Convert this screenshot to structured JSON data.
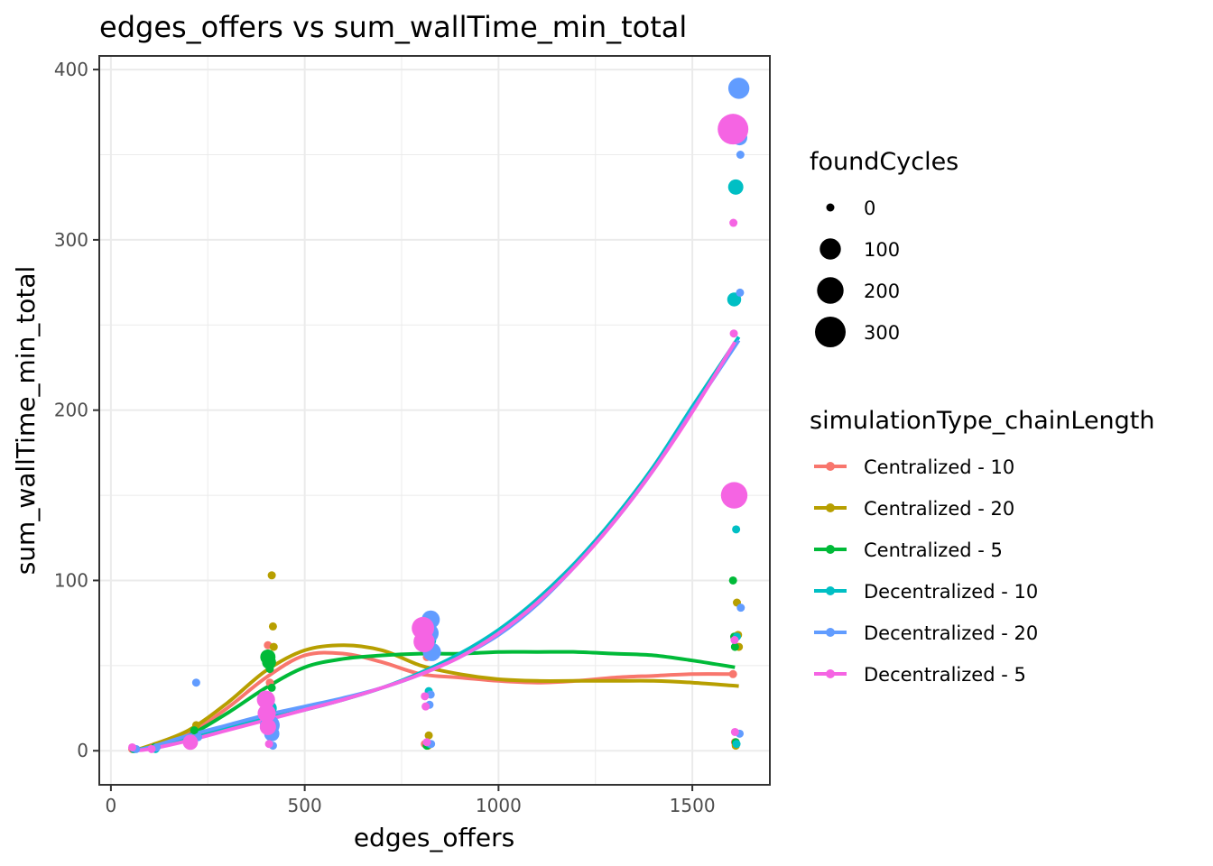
{
  "chart_data": {
    "type": "scatter",
    "title": "edges_offers  vs  sum_wallTime_min_total",
    "xlabel": "edges_offers",
    "ylabel": "sum_wallTime_min_total",
    "xlim": [
      -30,
      1700
    ],
    "ylim": [
      -20,
      408
    ],
    "x_ticks": [
      0,
      500,
      1000,
      1500
    ],
    "y_ticks": [
      0,
      100,
      200,
      300,
      400
    ],
    "x_tick_labels": [
      "0",
      "500",
      "1000",
      "1500"
    ],
    "y_tick_labels": [
      "0",
      "100",
      "200",
      "300",
      "400"
    ],
    "grid": true,
    "legend_position": "right",
    "size_legend": {
      "title": "foundCycles",
      "entries": [
        {
          "label": "0",
          "value": 0
        },
        {
          "label": "100",
          "value": 100
        },
        {
          "label": "200",
          "value": 200
        },
        {
          "label": "300",
          "value": 300
        }
      ]
    },
    "color_legend": {
      "title": "simulationType_chainLength"
    },
    "series": [
      {
        "name": "Centralized - 10",
        "color": "#F8766D",
        "points": [
          [
            55,
            1,
            0
          ],
          [
            110,
            2,
            0
          ],
          [
            210,
            7,
            0
          ],
          [
            405,
            62,
            0
          ],
          [
            410,
            40,
            0
          ],
          [
            408,
            15,
            0
          ],
          [
            810,
            4,
            0
          ],
          [
            815,
            55,
            0
          ],
          [
            1605,
            45,
            0
          ],
          [
            1610,
            5,
            0
          ]
        ],
        "smooth": [
          [
            55,
            0
          ],
          [
            100,
            2
          ],
          [
            200,
            10
          ],
          [
            300,
            25
          ],
          [
            400,
            43
          ],
          [
            500,
            56
          ],
          [
            600,
            57
          ],
          [
            700,
            52
          ],
          [
            800,
            45
          ],
          [
            900,
            43
          ],
          [
            1000,
            41
          ],
          [
            1100,
            40
          ],
          [
            1200,
            41
          ],
          [
            1300,
            43
          ],
          [
            1400,
            44
          ],
          [
            1500,
            45
          ],
          [
            1610,
            45
          ]
        ]
      },
      {
        "name": "Centralized - 20",
        "color": "#B79F00",
        "points": [
          [
            60,
            1,
            0
          ],
          [
            115,
            2,
            0
          ],
          [
            220,
            15,
            0
          ],
          [
            415,
            103,
            0
          ],
          [
            418,
            73,
            0
          ],
          [
            420,
            61,
            0
          ],
          [
            412,
            20,
            0
          ],
          [
            820,
            9,
            0
          ],
          [
            818,
            3,
            0
          ],
          [
            822,
            62,
            0
          ],
          [
            1615,
            87,
            0
          ],
          [
            1618,
            68,
            0
          ],
          [
            1620,
            61,
            0
          ],
          [
            1612,
            3,
            0
          ]
        ],
        "smooth": [
          [
            55,
            0
          ],
          [
            100,
            3
          ],
          [
            200,
            12
          ],
          [
            300,
            28
          ],
          [
            400,
            47
          ],
          [
            500,
            59
          ],
          [
            600,
            62
          ],
          [
            700,
            59
          ],
          [
            800,
            50
          ],
          [
            900,
            45
          ],
          [
            1000,
            42
          ],
          [
            1100,
            41
          ],
          [
            1200,
            41
          ],
          [
            1300,
            41
          ],
          [
            1400,
            41
          ],
          [
            1500,
            40
          ],
          [
            1620,
            38
          ]
        ]
      },
      {
        "name": "Centralized - 5",
        "color": "#00BA38",
        "points": [
          [
            58,
            1,
            0
          ],
          [
            112,
            2,
            0
          ],
          [
            215,
            12,
            0
          ],
          [
            405,
            55,
            30
          ],
          [
            408,
            52,
            20
          ],
          [
            410,
            48,
            0
          ],
          [
            415,
            37,
            0
          ],
          [
            812,
            60,
            0
          ],
          [
            815,
            3,
            0
          ],
          [
            1605,
            100,
            0
          ],
          [
            1608,
            67,
            0
          ],
          [
            1610,
            61,
            0
          ],
          [
            1612,
            5,
            0
          ]
        ],
        "smooth": [
          [
            55,
            0
          ],
          [
            100,
            2
          ],
          [
            200,
            9
          ],
          [
            300,
            22
          ],
          [
            400,
            37
          ],
          [
            500,
            49
          ],
          [
            600,
            54
          ],
          [
            700,
            56
          ],
          [
            800,
            57
          ],
          [
            900,
            57
          ],
          [
            1000,
            58
          ],
          [
            1100,
            58
          ],
          [
            1200,
            58
          ],
          [
            1300,
            57
          ],
          [
            1400,
            56
          ],
          [
            1500,
            53
          ],
          [
            1610,
            49
          ]
        ]
      },
      {
        "name": "Decentralized - 10",
        "color": "#00BFC4",
        "points": [
          [
            60,
            1,
            0
          ],
          [
            115,
            1,
            0
          ],
          [
            212,
            6,
            0
          ],
          [
            410,
            25,
            20
          ],
          [
            412,
            14,
            0
          ],
          [
            818,
            65,
            40
          ],
          [
            820,
            35,
            0
          ],
          [
            822,
            4,
            0
          ],
          [
            1610,
            369,
            30
          ],
          [
            1612,
            331,
            30
          ],
          [
            1608,
            265,
            20
          ],
          [
            1613,
            130,
            0
          ],
          [
            1615,
            67,
            0
          ],
          [
            1614,
            4,
            0
          ]
        ],
        "smooth": [
          [
            55,
            0
          ],
          [
            100,
            2
          ],
          [
            200,
            7
          ],
          [
            300,
            13
          ],
          [
            400,
            19
          ],
          [
            500,
            24
          ],
          [
            600,
            30
          ],
          [
            700,
            37
          ],
          [
            800,
            46
          ],
          [
            900,
            57
          ],
          [
            1000,
            71
          ],
          [
            1100,
            89
          ],
          [
            1200,
            111
          ],
          [
            1300,
            137
          ],
          [
            1400,
            167
          ],
          [
            1500,
            202
          ],
          [
            1620,
            243
          ]
        ]
      },
      {
        "name": "Decentralized - 20",
        "color": "#619CFF",
        "points": [
          [
            65,
            1,
            0
          ],
          [
            118,
            2,
            0
          ],
          [
            220,
            40,
            0
          ],
          [
            225,
            8,
            0
          ],
          [
            410,
            15,
            80
          ],
          [
            415,
            10,
            30
          ],
          [
            418,
            3,
            0
          ],
          [
            825,
            77,
            60
          ],
          [
            820,
            69,
            80
          ],
          [
            828,
            58,
            60
          ],
          [
            825,
            33,
            0
          ],
          [
            822,
            27,
            0
          ],
          [
            826,
            4,
            0
          ],
          [
            1620,
            389,
            100
          ],
          [
            1622,
            360,
            30
          ],
          [
            1624,
            350,
            0
          ],
          [
            1623,
            269,
            0
          ],
          [
            1625,
            84,
            0
          ],
          [
            1622,
            10,
            0
          ]
        ],
        "smooth": [
          [
            55,
            0
          ],
          [
            100,
            2
          ],
          [
            200,
            9
          ],
          [
            300,
            15
          ],
          [
            400,
            21
          ],
          [
            500,
            26
          ],
          [
            600,
            31
          ],
          [
            700,
            37
          ],
          [
            800,
            45
          ],
          [
            900,
            55
          ],
          [
            1000,
            68
          ],
          [
            1100,
            86
          ],
          [
            1200,
            109
          ],
          [
            1300,
            135
          ],
          [
            1400,
            165
          ],
          [
            1500,
            200
          ],
          [
            1620,
            241
          ]
        ]
      },
      {
        "name": "Decentralized - 5",
        "color": "#F564E3",
        "points": [
          [
            55,
            2,
            0
          ],
          [
            105,
            1,
            0
          ],
          [
            205,
            5,
            30
          ],
          [
            400,
            30,
            60
          ],
          [
            402,
            22,
            60
          ],
          [
            405,
            14,
            40
          ],
          [
            408,
            4,
            0
          ],
          [
            805,
            72,
            120
          ],
          [
            808,
            64,
            100
          ],
          [
            810,
            32,
            0
          ],
          [
            812,
            26,
            0
          ],
          [
            815,
            5,
            0
          ],
          [
            1605,
            365,
            300
          ],
          [
            1606,
            310,
            0
          ],
          [
            1607,
            245,
            0
          ],
          [
            1608,
            150,
            200
          ],
          [
            1609,
            65,
            0
          ],
          [
            1610,
            11,
            0
          ]
        ],
        "smooth": [
          [
            55,
            0
          ],
          [
            100,
            1
          ],
          [
            200,
            6
          ],
          [
            300,
            12
          ],
          [
            400,
            18
          ],
          [
            500,
            24
          ],
          [
            600,
            30
          ],
          [
            700,
            37
          ],
          [
            800,
            45
          ],
          [
            900,
            55
          ],
          [
            1000,
            69
          ],
          [
            1100,
            87
          ],
          [
            1200,
            109
          ],
          [
            1300,
            135
          ],
          [
            1400,
            165
          ],
          [
            1500,
            199
          ],
          [
            1610,
            240
          ]
        ]
      }
    ]
  }
}
